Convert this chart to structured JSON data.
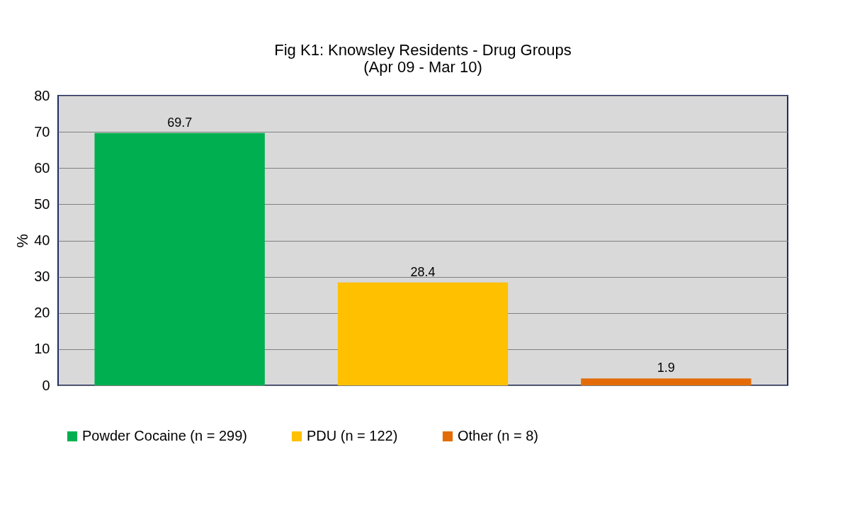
{
  "chart_data": {
    "type": "bar",
    "title": "Fig K1: Knowsley Residents - Drug Groups",
    "subtitle": "(Apr 09 - Mar 10)",
    "ylabel": "%",
    "categories": [
      null,
      null,
      null
    ],
    "series": [
      {
        "name": "Powder Cocaine (n = 299)",
        "color": "#00b050",
        "values": [
          69.7,
          null,
          null
        ]
      },
      {
        "name": "PDU (n = 122)",
        "color": "#ffc000",
        "values": [
          null,
          28.4,
          null
        ]
      },
      {
        "name": "Other (n = 8)",
        "color": "#e36c09",
        "values": [
          null,
          null,
          1.9
        ]
      }
    ],
    "ylim": [
      0,
      80
    ],
    "yticks": [
      0,
      10,
      20,
      30,
      40,
      50,
      60,
      70,
      80
    ],
    "grid": "y",
    "legend": "bottom",
    "data_labels": true
  }
}
